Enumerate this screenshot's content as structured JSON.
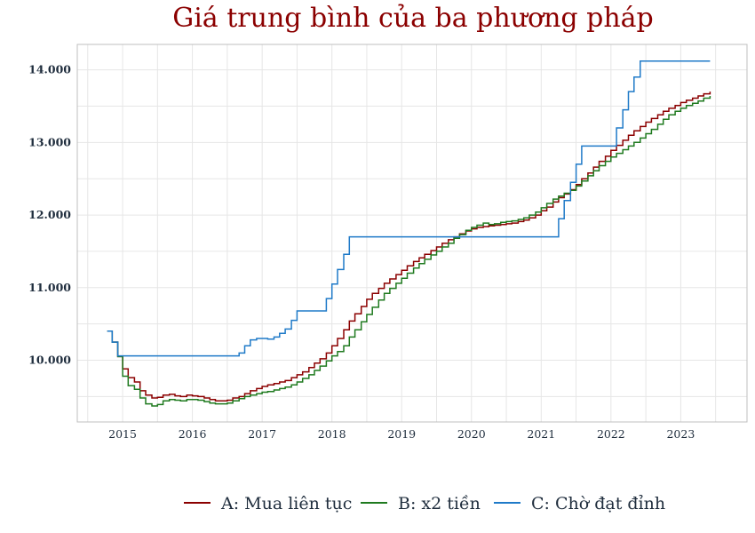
{
  "chart_data": {
    "type": "line",
    "title": "Giá trung bình của ba phương pháp",
    "xlabel": "",
    "ylabel": "",
    "x_ticks": [
      "2015",
      "2016",
      "2017",
      "2018",
      "2019",
      "2020",
      "2021",
      "2022",
      "2023"
    ],
    "y_ticks": [
      "10.000",
      "11.000",
      "12.000",
      "13.000",
      "14.000"
    ],
    "xlim": [
      2014.35,
      2023.95
    ],
    "ylim": [
      9150,
      14350
    ],
    "grid": true,
    "legend_position": "bottom",
    "series": [
      {
        "name": "A: Mua liên tục",
        "color": "#8b0000",
        "points": [
          [
            2014.78,
            10400
          ],
          [
            2014.85,
            10250
          ],
          [
            2014.93,
            10050
          ],
          [
            2015.0,
            9880
          ],
          [
            2015.08,
            9760
          ],
          [
            2015.17,
            9700
          ],
          [
            2015.25,
            9580
          ],
          [
            2015.33,
            9520
          ],
          [
            2015.42,
            9480
          ],
          [
            2015.5,
            9490
          ],
          [
            2015.58,
            9520
          ],
          [
            2015.67,
            9530
          ],
          [
            2015.75,
            9510
          ],
          [
            2015.83,
            9500
          ],
          [
            2015.92,
            9520
          ],
          [
            2016.0,
            9510
          ],
          [
            2016.08,
            9500
          ],
          [
            2016.17,
            9480
          ],
          [
            2016.25,
            9460
          ],
          [
            2016.33,
            9440
          ],
          [
            2016.42,
            9440
          ],
          [
            2016.5,
            9450
          ],
          [
            2016.58,
            9480
          ],
          [
            2016.67,
            9500
          ],
          [
            2016.75,
            9540
          ],
          [
            2016.83,
            9580
          ],
          [
            2016.92,
            9610
          ],
          [
            2017.0,
            9640
          ],
          [
            2017.08,
            9660
          ],
          [
            2017.17,
            9680
          ],
          [
            2017.25,
            9700
          ],
          [
            2017.33,
            9720
          ],
          [
            2017.42,
            9760
          ],
          [
            2017.5,
            9800
          ],
          [
            2017.58,
            9840
          ],
          [
            2017.67,
            9900
          ],
          [
            2017.75,
            9960
          ],
          [
            2017.83,
            10020
          ],
          [
            2017.92,
            10100
          ],
          [
            2018.0,
            10200
          ],
          [
            2018.08,
            10300
          ],
          [
            2018.17,
            10420
          ],
          [
            2018.25,
            10540
          ],
          [
            2018.33,
            10640
          ],
          [
            2018.42,
            10740
          ],
          [
            2018.5,
            10840
          ],
          [
            2018.58,
            10920
          ],
          [
            2018.67,
            10990
          ],
          [
            2018.75,
            11060
          ],
          [
            2018.83,
            11120
          ],
          [
            2018.92,
            11180
          ],
          [
            2019.0,
            11240
          ],
          [
            2019.08,
            11300
          ],
          [
            2019.17,
            11360
          ],
          [
            2019.25,
            11410
          ],
          [
            2019.33,
            11460
          ],
          [
            2019.42,
            11510
          ],
          [
            2019.5,
            11560
          ],
          [
            2019.58,
            11610
          ],
          [
            2019.67,
            11660
          ],
          [
            2019.75,
            11700
          ],
          [
            2019.83,
            11740
          ],
          [
            2019.92,
            11780
          ],
          [
            2020.0,
            11810
          ],
          [
            2020.08,
            11830
          ],
          [
            2020.17,
            11840
          ],
          [
            2020.25,
            11850
          ],
          [
            2020.33,
            11860
          ],
          [
            2020.42,
            11870
          ],
          [
            2020.5,
            11880
          ],
          [
            2020.58,
            11890
          ],
          [
            2020.67,
            11910
          ],
          [
            2020.75,
            11930
          ],
          [
            2020.83,
            11960
          ],
          [
            2020.92,
            12000
          ],
          [
            2021.0,
            12060
          ],
          [
            2021.08,
            12110
          ],
          [
            2021.17,
            12180
          ],
          [
            2021.25,
            12240
          ],
          [
            2021.33,
            12290
          ],
          [
            2021.42,
            12350
          ],
          [
            2021.5,
            12420
          ],
          [
            2021.58,
            12500
          ],
          [
            2021.67,
            12580
          ],
          [
            2021.75,
            12660
          ],
          [
            2021.83,
            12740
          ],
          [
            2021.92,
            12810
          ],
          [
            2022.0,
            12890
          ],
          [
            2022.08,
            12960
          ],
          [
            2022.17,
            13030
          ],
          [
            2022.25,
            13100
          ],
          [
            2022.33,
            13160
          ],
          [
            2022.42,
            13220
          ],
          [
            2022.5,
            13280
          ],
          [
            2022.58,
            13330
          ],
          [
            2022.67,
            13380
          ],
          [
            2022.75,
            13430
          ],
          [
            2022.83,
            13470
          ],
          [
            2022.92,
            13510
          ],
          [
            2023.0,
            13550
          ],
          [
            2023.08,
            13580
          ],
          [
            2023.17,
            13610
          ],
          [
            2023.25,
            13640
          ],
          [
            2023.33,
            13670
          ],
          [
            2023.42,
            13700
          ]
        ]
      },
      {
        "name": "B: x2 tiền",
        "color": "#1f7a1f",
        "points": [
          [
            2014.78,
            10400
          ],
          [
            2014.85,
            10250
          ],
          [
            2014.93,
            10050
          ],
          [
            2015.0,
            9780
          ],
          [
            2015.08,
            9650
          ],
          [
            2015.17,
            9600
          ],
          [
            2015.25,
            9480
          ],
          [
            2015.33,
            9400
          ],
          [
            2015.42,
            9370
          ],
          [
            2015.5,
            9390
          ],
          [
            2015.58,
            9440
          ],
          [
            2015.67,
            9460
          ],
          [
            2015.75,
            9450
          ],
          [
            2015.83,
            9440
          ],
          [
            2015.92,
            9460
          ],
          [
            2016.0,
            9460
          ],
          [
            2016.08,
            9450
          ],
          [
            2016.17,
            9430
          ],
          [
            2016.25,
            9410
          ],
          [
            2016.33,
            9400
          ],
          [
            2016.42,
            9400
          ],
          [
            2016.5,
            9410
          ],
          [
            2016.58,
            9440
          ],
          [
            2016.67,
            9470
          ],
          [
            2016.75,
            9500
          ],
          [
            2016.83,
            9520
          ],
          [
            2016.92,
            9540
          ],
          [
            2017.0,
            9560
          ],
          [
            2017.08,
            9570
          ],
          [
            2017.17,
            9590
          ],
          [
            2017.25,
            9610
          ],
          [
            2017.33,
            9630
          ],
          [
            2017.42,
            9660
          ],
          [
            2017.5,
            9700
          ],
          [
            2017.58,
            9750
          ],
          [
            2017.67,
            9800
          ],
          [
            2017.75,
            9860
          ],
          [
            2017.83,
            9920
          ],
          [
            2017.92,
            9990
          ],
          [
            2018.0,
            10060
          ],
          [
            2018.08,
            10120
          ],
          [
            2018.17,
            10200
          ],
          [
            2018.25,
            10320
          ],
          [
            2018.33,
            10420
          ],
          [
            2018.42,
            10530
          ],
          [
            2018.5,
            10630
          ],
          [
            2018.58,
            10730
          ],
          [
            2018.67,
            10830
          ],
          [
            2018.75,
            10920
          ],
          [
            2018.83,
            10990
          ],
          [
            2018.92,
            11060
          ],
          [
            2019.0,
            11130
          ],
          [
            2019.08,
            11200
          ],
          [
            2019.17,
            11270
          ],
          [
            2019.25,
            11330
          ],
          [
            2019.33,
            11390
          ],
          [
            2019.42,
            11450
          ],
          [
            2019.5,
            11500
          ],
          [
            2019.58,
            11560
          ],
          [
            2019.67,
            11610
          ],
          [
            2019.75,
            11680
          ],
          [
            2019.83,
            11730
          ],
          [
            2019.92,
            11790
          ],
          [
            2020.0,
            11830
          ],
          [
            2020.08,
            11860
          ],
          [
            2020.17,
            11890
          ],
          [
            2020.25,
            11870
          ],
          [
            2020.33,
            11880
          ],
          [
            2020.42,
            11900
          ],
          [
            2020.5,
            11910
          ],
          [
            2020.58,
            11920
          ],
          [
            2020.67,
            11940
          ],
          [
            2020.75,
            11960
          ],
          [
            2020.83,
            12000
          ],
          [
            2020.92,
            12040
          ],
          [
            2021.0,
            12100
          ],
          [
            2021.08,
            12160
          ],
          [
            2021.17,
            12220
          ],
          [
            2021.25,
            12260
          ],
          [
            2021.33,
            12300
          ],
          [
            2021.42,
            12340
          ],
          [
            2021.5,
            12400
          ],
          [
            2021.58,
            12470
          ],
          [
            2021.67,
            12540
          ],
          [
            2021.75,
            12610
          ],
          [
            2021.83,
            12680
          ],
          [
            2021.92,
            12740
          ],
          [
            2022.0,
            12800
          ],
          [
            2022.08,
            12850
          ],
          [
            2022.17,
            12900
          ],
          [
            2022.25,
            12950
          ],
          [
            2022.33,
            13000
          ],
          [
            2022.42,
            13060
          ],
          [
            2022.5,
            13120
          ],
          [
            2022.58,
            13180
          ],
          [
            2022.67,
            13250
          ],
          [
            2022.75,
            13320
          ],
          [
            2022.83,
            13380
          ],
          [
            2022.92,
            13430
          ],
          [
            2023.0,
            13470
          ],
          [
            2023.08,
            13510
          ],
          [
            2023.17,
            13540
          ],
          [
            2023.25,
            13570
          ],
          [
            2023.33,
            13610
          ],
          [
            2023.42,
            13640
          ]
        ]
      },
      {
        "name": "C: Chờ đạt đỉnh",
        "color": "#1f7ac8",
        "points": [
          [
            2014.78,
            10400
          ],
          [
            2014.85,
            10250
          ],
          [
            2014.93,
            10060
          ],
          [
            2016.58,
            10060
          ],
          [
            2016.67,
            10100
          ],
          [
            2016.75,
            10200
          ],
          [
            2016.83,
            10280
          ],
          [
            2016.92,
            10300
          ],
          [
            2017.0,
            10300
          ],
          [
            2017.08,
            10290
          ],
          [
            2017.17,
            10320
          ],
          [
            2017.25,
            10370
          ],
          [
            2017.33,
            10430
          ],
          [
            2017.42,
            10550
          ],
          [
            2017.5,
            10680
          ],
          [
            2017.83,
            10680
          ],
          [
            2017.92,
            10850
          ],
          [
            2018.0,
            11050
          ],
          [
            2018.08,
            11250
          ],
          [
            2018.17,
            11460
          ],
          [
            2018.25,
            11700
          ],
          [
            2021.17,
            11700
          ],
          [
            2021.25,
            11950
          ],
          [
            2021.33,
            12200
          ],
          [
            2021.42,
            12450
          ],
          [
            2021.5,
            12700
          ],
          [
            2021.58,
            12950
          ],
          [
            2022.0,
            12950
          ],
          [
            2022.08,
            13200
          ],
          [
            2022.17,
            13450
          ],
          [
            2022.25,
            13700
          ],
          [
            2022.33,
            13900
          ],
          [
            2022.42,
            14120
          ],
          [
            2023.42,
            14120
          ]
        ]
      }
    ]
  }
}
